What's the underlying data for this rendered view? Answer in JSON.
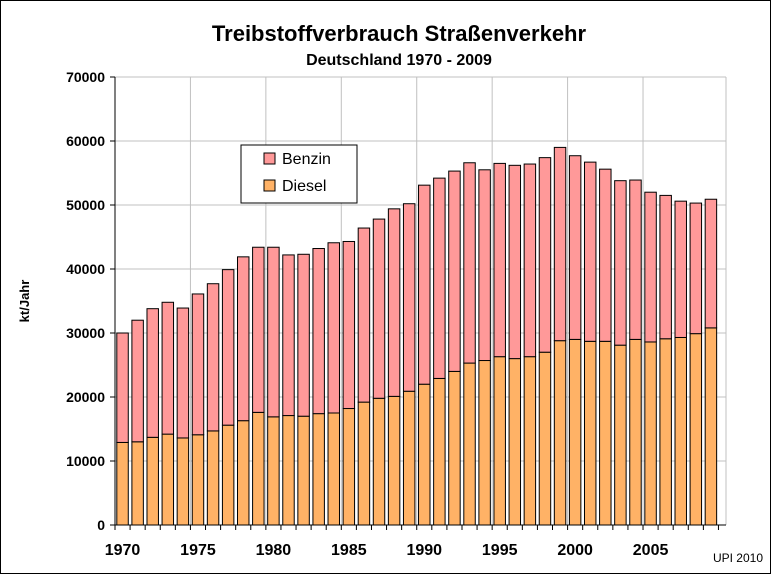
{
  "chart_data": {
    "type": "bar",
    "stacked": true,
    "title": "Treibstoffverbrauch Straßenverkehr",
    "subtitle": "Deutschland 1970 - 2009",
    "xlabel": "",
    "ylabel": "kt/Jahr",
    "ylim": [
      0,
      70000
    ],
    "yticks": [
      0,
      10000,
      20000,
      30000,
      40000,
      50000,
      60000,
      70000
    ],
    "xticks": [
      "1970",
      "1975",
      "1980",
      "1985",
      "1990",
      "1995",
      "2000",
      "2005"
    ],
    "grid": true,
    "legend_position": "upper-left",
    "categories": [
      1970,
      1971,
      1972,
      1973,
      1974,
      1975,
      1976,
      1977,
      1978,
      1979,
      1980,
      1981,
      1982,
      1983,
      1984,
      1985,
      1986,
      1987,
      1988,
      1989,
      1990,
      1991,
      1992,
      1993,
      1994,
      1995,
      1996,
      1997,
      1998,
      1999,
      2000,
      2001,
      2002,
      2003,
      2004,
      2005,
      2006,
      2007,
      2008,
      2009
    ],
    "series": [
      {
        "name": "Diesel",
        "color": "#FFB266",
        "values": [
          12900,
          13000,
          13700,
          14200,
          13600,
          14100,
          14700,
          15600,
          16300,
          17600,
          16900,
          17100,
          17000,
          17400,
          17500,
          18200,
          19200,
          19800,
          20100,
          20900,
          22000,
          22900,
          24000,
          25300,
          25700,
          26300,
          26000,
          26300,
          27000,
          28800,
          29000,
          28700,
          28700,
          28100,
          29000,
          28600,
          29100,
          29300,
          29900,
          30800
        ]
      },
      {
        "name": "Benzin",
        "color": "#FF9999",
        "values": [
          17100,
          19000,
          20100,
          20600,
          20300,
          22000,
          23000,
          24300,
          25600,
          25800,
          26500,
          25100,
          25300,
          25800,
          26600,
          26100,
          27200,
          28000,
          29300,
          29300,
          31100,
          31300,
          31300,
          31300,
          29800,
          30200,
          30200,
          30100,
          30400,
          30200,
          28700,
          28000,
          26900,
          25700,
          24900,
          23400,
          22400,
          21300,
          20400,
          20100
        ]
      }
    ]
  },
  "legend": {
    "benzin_label": "Benzin",
    "diesel_label": "Diesel",
    "benzin_color": "#FF9999",
    "diesel_color": "#FFB266"
  },
  "plot": {
    "background": "#ffffff",
    "grid_color": "#C0C0C0"
  },
  "credit": "UPI 2010"
}
